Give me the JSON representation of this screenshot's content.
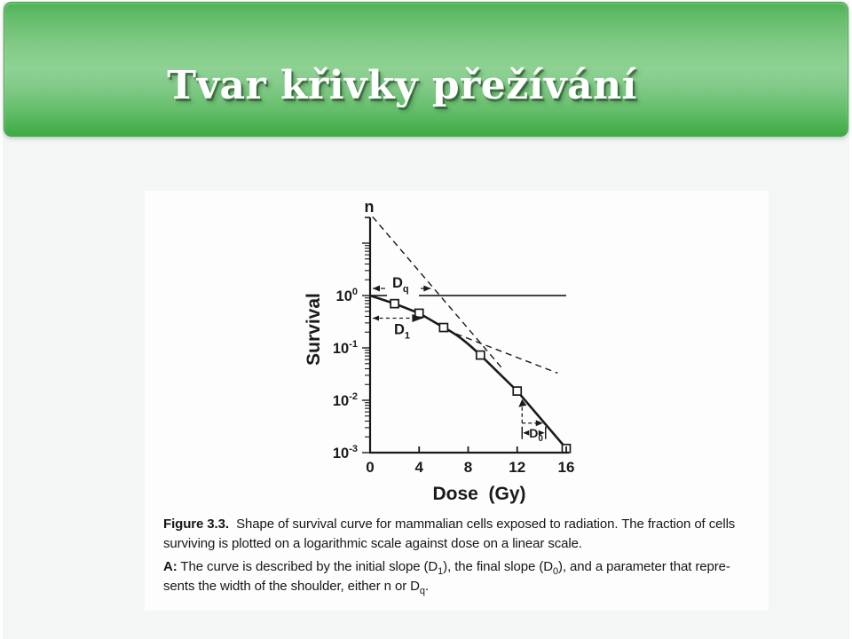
{
  "slide": {
    "title": "Tvar křivky přežívání",
    "banner_color_top": "#4eb055",
    "banner_color_mid": "#8ed293",
    "banner_color_bottom": "#41aa47",
    "background_color": "#f4f5f5"
  },
  "figure": {
    "caption": {
      "l1": [
        {
          "t": "Figure 3.3.",
          "b": true
        },
        {
          "t": "  Shape of survival curve for mammalian cells exposed to radiation. The fraction of cells"
        }
      ],
      "l2": [
        {
          "t": "surviving is plotted on a logarithmic scale against dose on a linear scale."
        }
      ],
      "l3": [
        {
          "t": "A:",
          "b": true
        },
        {
          "t": " The curve is described by the initial slope (D"
        },
        {
          "t": "1",
          "s": true
        },
        {
          "t": "), the final slope (D"
        },
        {
          "t": "0",
          "s": true
        },
        {
          "t": "), and a parameter that repre-"
        }
      ],
      "l4": [
        {
          "t": "sents the width of the shoulder, either n or D"
        },
        {
          "t": "q",
          "s": true
        },
        {
          "t": "."
        }
      ]
    },
    "chart_data": {
      "type": "line",
      "title": "",
      "xlabel": "Dose  (Gy)",
      "ylabel": "Survival",
      "x_ticks": [
        0,
        4,
        8,
        12,
        16
      ],
      "y_ticks": [
        {
          "label": "10",
          "exp": "0",
          "value": 1
        },
        {
          "label": "10",
          "exp": "-1",
          "value": 0.1
        },
        {
          "label": "10",
          "exp": "-2",
          "value": 0.01
        },
        {
          "label": "10",
          "exp": "-3",
          "value": 0.001
        }
      ],
      "xlim": [
        0,
        16.2
      ],
      "ylim_log": [
        0.001,
        32
      ],
      "top_axis_label": "n",
      "marker": "open-square",
      "grid": false,
      "survival_one_line": true,
      "points": [
        [
          0,
          1
        ],
        [
          2,
          0.7
        ],
        [
          4,
          0.46
        ],
        [
          6,
          0.245
        ],
        [
          9,
          0.073
        ],
        [
          12,
          0.015
        ],
        [
          16,
          0.0012
        ]
      ],
      "extrapolation_lines": [
        {
          "name": "final-slope-back-extrapolation",
          "from": [
            0.2,
            32
          ],
          "to": [
            10.8,
            0.04
          ]
        },
        {
          "name": "initial-slope-extension",
          "from": [
            6.2,
            0.22
          ],
          "to": [
            15.3,
            0.033
          ]
        }
      ],
      "annotations": [
        {
          "name": "Dq",
          "label": "D",
          "sub": "q",
          "surv": 1,
          "dose_from": 0,
          "dose_to": 4.95
        },
        {
          "name": "D1",
          "label": "D",
          "sub": "1",
          "surv": 0.37,
          "dose_from": 0,
          "dose_to": 4.3
        },
        {
          "name": "D0",
          "label": "D",
          "sub": "0",
          "dose_at": 12.4,
          "surv_top": 0.0097,
          "surv_bottom": 0.00366,
          "dose_to": 14.1
        }
      ]
    }
  }
}
